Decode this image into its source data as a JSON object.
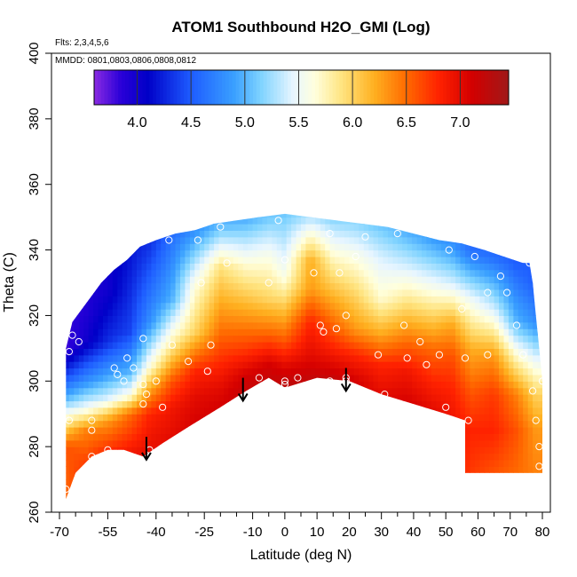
{
  "chart_data": {
    "type": "heatmap",
    "title": "ATOM1 Southbound H2O_GMI (Log)",
    "flights_label": "Flts: 2,3,4,5,6",
    "dates_label": "MMDD: 0801,0803,0806,0808,0812",
    "xlabel": "Latitude (deg N)",
    "ylabel": "Theta (C)",
    "xlim": [
      -70,
      80
    ],
    "ylim": [
      260,
      400
    ],
    "x_tick_labels": [
      "-70",
      "-55",
      "-40",
      "-25",
      "-10",
      "0",
      "10",
      "20",
      "30",
      "40",
      "50",
      "60",
      "70",
      "80"
    ],
    "x_tick_values": [
      -70,
      -55,
      -40,
      -25,
      -10,
      0,
      10,
      20,
      30,
      40,
      50,
      60,
      70,
      80
    ],
    "x_minor_ticks": [
      -65,
      -60,
      -50,
      -45,
      -35,
      -30,
      -20,
      -15,
      -5,
      5,
      15,
      25,
      35,
      45,
      55,
      65,
      75
    ],
    "y_ticks": [
      260,
      280,
      300,
      320,
      340,
      360,
      380,
      400
    ],
    "colorbar": {
      "min": 3.6,
      "max": 7.45,
      "ticks": [
        4.0,
        4.5,
        5.0,
        5.5,
        6.0,
        6.5,
        7.0
      ],
      "tick_labels": [
        "4.0",
        "4.5",
        "5.0",
        "5.5",
        "6.0",
        "6.5",
        "7.0"
      ],
      "stops": [
        {
          "v": 3.6,
          "c": "#8a2be2"
        },
        {
          "v": 3.85,
          "c": "#2a00d8"
        },
        {
          "v": 4.1,
          "c": "#0000c8"
        },
        {
          "v": 4.5,
          "c": "#1e5cff"
        },
        {
          "v": 4.9,
          "c": "#3aa0ff"
        },
        {
          "v": 5.15,
          "c": "#7fd3ff"
        },
        {
          "v": 5.45,
          "c": "#e8f6ff"
        },
        {
          "v": 5.65,
          "c": "#ffffdd"
        },
        {
          "v": 5.9,
          "c": "#ffe480"
        },
        {
          "v": 6.2,
          "c": "#ffb020"
        },
        {
          "v": 6.5,
          "c": "#ff6a00"
        },
        {
          "v": 6.8,
          "c": "#ff2200"
        },
        {
          "v": 7.1,
          "c": "#d40000"
        },
        {
          "v": 7.45,
          "c": "#a01818"
        }
      ]
    },
    "data_region": {
      "top": [
        [
          -68,
          310
        ],
        [
          -66,
          318
        ],
        [
          -63,
          322
        ],
        [
          -60,
          326
        ],
        [
          -57,
          330
        ],
        [
          -53,
          334
        ],
        [
          -49,
          337
        ],
        [
          -45,
          341
        ],
        [
          -40,
          343
        ],
        [
          -34,
          345
        ],
        [
          -28,
          346
        ],
        [
          -22,
          348
        ],
        [
          -15,
          349
        ],
        [
          -8,
          350
        ],
        [
          0,
          351
        ],
        [
          8,
          350
        ],
        [
          16,
          349
        ],
        [
          24,
          348
        ],
        [
          32,
          347
        ],
        [
          40,
          345
        ],
        [
          48,
          343
        ],
        [
          55,
          342
        ],
        [
          62,
          340
        ],
        [
          68,
          338
        ],
        [
          74,
          336
        ],
        [
          76,
          336
        ],
        [
          77,
          330
        ],
        [
          78,
          320
        ],
        [
          79,
          310
        ],
        [
          80,
          300
        ],
        [
          80,
          288
        ]
      ],
      "bottom_points": [
        [
          -68,
          264
        ],
        [
          -65,
          272
        ],
        [
          -60,
          277
        ],
        [
          -55,
          279
        ],
        [
          -50,
          279
        ],
        [
          -44,
          277
        ],
        [
          -38,
          281
        ],
        [
          -30,
          286
        ],
        [
          -20,
          292
        ],
        [
          -12,
          297
        ],
        [
          -5,
          301
        ],
        [
          0,
          298
        ],
        [
          10,
          301
        ],
        [
          20,
          300
        ],
        [
          30,
          296
        ],
        [
          40,
          293
        ],
        [
          50,
          290
        ],
        [
          56,
          288
        ],
        [
          56,
          272
        ],
        [
          80,
          272
        ]
      ]
    },
    "value_field": {
      "description": "log10 H2O mixing ratio; columns of [latitude, [[theta, value], ...]] from bottom to top",
      "columns": [
        [
          -68,
          [
            [
              262,
              6.5
            ],
            [
              280,
              6.6
            ],
            [
              288,
              5.8
            ],
            [
              295,
              5.0
            ],
            [
              302,
              4.4
            ],
            [
              310,
              3.8
            ]
          ]
        ],
        [
          -62,
          [
            [
              274,
              6.7
            ],
            [
              285,
              6.4
            ],
            [
              292,
              5.5
            ],
            [
              300,
              4.8
            ],
            [
              312,
              4.0
            ],
            [
              322,
              3.9
            ]
          ]
        ],
        [
          -55,
          [
            [
              278,
              6.8
            ],
            [
              288,
              6.3
            ],
            [
              295,
              5.4
            ],
            [
              302,
              4.9
            ],
            [
              312,
              4.3
            ],
            [
              328,
              4.0
            ]
          ]
        ],
        [
          -48,
          [
            [
              278,
              6.9
            ],
            [
              290,
              6.5
            ],
            [
              296,
              5.6
            ],
            [
              303,
              5.0
            ],
            [
              315,
              4.4
            ],
            [
              336,
              4.2
            ]
          ]
        ],
        [
          -42,
          [
            [
              277,
              7.0
            ],
            [
              290,
              6.8
            ],
            [
              298,
              6.2
            ],
            [
              305,
              5.6
            ],
            [
              318,
              4.8
            ],
            [
              342,
              4.3
            ]
          ]
        ],
        [
          -35,
          [
            [
              283,
              7.0
            ],
            [
              292,
              6.9
            ],
            [
              300,
              6.6
            ],
            [
              310,
              5.9
            ],
            [
              325,
              5.0
            ],
            [
              345,
              4.6
            ]
          ]
        ],
        [
          -28,
          [
            [
              286,
              7.1
            ],
            [
              295,
              7.0
            ],
            [
              303,
              6.8
            ],
            [
              315,
              6.0
            ],
            [
              330,
              5.6
            ],
            [
              346,
              4.8
            ]
          ]
        ],
        [
          -20,
          [
            [
              292,
              7.1
            ],
            [
              298,
              7.0
            ],
            [
              305,
              6.8
            ],
            [
              318,
              6.4
            ],
            [
              335,
              5.9
            ],
            [
              348,
              5.0
            ]
          ]
        ],
        [
          -12,
          [
            [
              297,
              7.2
            ],
            [
              302,
              7.1
            ],
            [
              310,
              6.7
            ],
            [
              320,
              6.3
            ],
            [
              335,
              5.7
            ],
            [
              349,
              5.0
            ]
          ]
        ],
        [
          -5,
          [
            [
              300,
              7.2
            ],
            [
              305,
              7.1
            ],
            [
              315,
              6.5
            ],
            [
              325,
              6.0
            ],
            [
              338,
              5.6
            ],
            [
              350,
              5.1
            ]
          ]
        ],
        [
          0,
          [
            [
              298,
              7.3
            ],
            [
              305,
              7.0
            ],
            [
              312,
              6.6
            ],
            [
              322,
              6.1
            ],
            [
              332,
              5.6
            ],
            [
              351,
              5.1
            ]
          ]
        ],
        [
          8,
          [
            [
              301,
              7.2
            ],
            [
              308,
              7.0
            ],
            [
              318,
              6.8
            ],
            [
              328,
              6.3
            ],
            [
              337,
              6.2
            ],
            [
              350,
              5.3
            ]
          ]
        ],
        [
          15,
          [
            [
              301,
              7.2
            ],
            [
              308,
              6.9
            ],
            [
              318,
              6.5
            ],
            [
              328,
              6.1
            ],
            [
              338,
              5.7
            ],
            [
              349,
              5.2
            ]
          ]
        ],
        [
          22,
          [
            [
              300,
              7.1
            ],
            [
              308,
              6.8
            ],
            [
              316,
              6.3
            ],
            [
              326,
              6.0
            ],
            [
              338,
              5.6
            ],
            [
              348,
              5.2
            ]
          ]
        ],
        [
          30,
          [
            [
              296,
              7.0
            ],
            [
              305,
              6.8
            ],
            [
              315,
              6.2
            ],
            [
              325,
              5.7
            ],
            [
              338,
              5.4
            ],
            [
              347,
              5.1
            ]
          ]
        ],
        [
          38,
          [
            [
              293,
              7.1
            ],
            [
              303,
              6.9
            ],
            [
              312,
              6.5
            ],
            [
              322,
              6.0
            ],
            [
              335,
              5.4
            ],
            [
              345,
              5.0
            ]
          ]
        ],
        [
          46,
          [
            [
              291,
              7.0
            ],
            [
              300,
              6.8
            ],
            [
              310,
              6.5
            ],
            [
              320,
              6.0
            ],
            [
              332,
              5.4
            ],
            [
              343,
              4.9
            ]
          ]
        ],
        [
          52,
          [
            [
              290,
              6.9
            ],
            [
              298,
              6.8
            ],
            [
              308,
              6.6
            ],
            [
              318,
              6.2
            ],
            [
              330,
              5.4
            ],
            [
              342,
              4.8
            ]
          ]
        ],
        [
          58,
          [
            [
              272,
              6.7
            ],
            [
              285,
              6.8
            ],
            [
              296,
              6.6
            ],
            [
              310,
              6.2
            ],
            [
              325,
              5.5
            ],
            [
              340,
              4.6
            ]
          ]
        ],
        [
          65,
          [
            [
              272,
              6.6
            ],
            [
              285,
              6.8
            ],
            [
              296,
              6.7
            ],
            [
              308,
              6.3
            ],
            [
              322,
              5.4
            ],
            [
              338,
              4.6
            ]
          ]
        ],
        [
          72,
          [
            [
              272,
              6.5
            ],
            [
              285,
              6.6
            ],
            [
              296,
              6.4
            ],
            [
              306,
              5.8
            ],
            [
              318,
              5.0
            ],
            [
              336,
              4.5
            ]
          ]
        ],
        [
          78,
          [
            [
              272,
              6.4
            ],
            [
              285,
              6.3
            ],
            [
              296,
              6.0
            ],
            [
              306,
              5.5
            ],
            [
              318,
              4.8
            ],
            [
              330,
              4.5
            ]
          ]
        ]
      ]
    },
    "samples": [
      [
        -68,
        267
      ],
      [
        -67,
        288
      ],
      [
        -67,
        309
      ],
      [
        -66,
        314
      ],
      [
        -64,
        312
      ],
      [
        -60,
        288
      ],
      [
        -60,
        277
      ],
      [
        -55,
        279
      ],
      [
        -53,
        304
      ],
      [
        -52,
        302
      ],
      [
        -50,
        300
      ],
      [
        -49,
        307
      ],
      [
        -47,
        304
      ],
      [
        -44,
        299
      ],
      [
        -44,
        293
      ],
      [
        -43,
        296
      ],
      [
        -40,
        300
      ],
      [
        -38,
        292
      ],
      [
        -42,
        279
      ],
      [
        -35,
        311
      ],
      [
        -30,
        306
      ],
      [
        -24,
        303
      ],
      [
        -23,
        311
      ],
      [
        -18,
        336
      ],
      [
        -26,
        330
      ],
      [
        -27,
        343
      ],
      [
        -20,
        347
      ],
      [
        -8,
        301
      ],
      [
        0,
        300
      ],
      [
        0,
        299
      ],
      [
        0,
        296
      ],
      [
        4,
        301
      ],
      [
        -5,
        330
      ],
      [
        0,
        337
      ],
      [
        -2,
        349
      ],
      [
        9,
        333
      ],
      [
        11,
        317
      ],
      [
        12,
        315
      ],
      [
        14,
        345
      ],
      [
        14,
        300
      ],
      [
        16,
        316
      ],
      [
        17,
        333
      ],
      [
        19,
        300
      ],
      [
        19,
        301
      ],
      [
        19,
        320
      ],
      [
        22,
        338
      ],
      [
        25,
        344
      ],
      [
        29,
        308
      ],
      [
        31,
        296
      ],
      [
        35,
        345
      ],
      [
        37,
        317
      ],
      [
        38,
        307
      ],
      [
        39,
        292
      ],
      [
        42,
        312
      ],
      [
        42,
        291
      ],
      [
        44,
        305
      ],
      [
        46,
        290
      ],
      [
        48,
        308
      ],
      [
        50,
        292
      ],
      [
        51,
        340
      ],
      [
        55,
        322
      ],
      [
        56,
        307
      ],
      [
        57,
        288
      ],
      [
        59,
        338
      ],
      [
        63,
        308
      ],
      [
        63,
        327
      ],
      [
        67,
        332
      ],
      [
        69,
        327
      ],
      [
        72,
        317
      ],
      [
        74,
        308
      ],
      [
        76,
        336
      ],
      [
        77,
        297
      ],
      [
        78,
        288
      ],
      [
        79,
        280
      ],
      [
        79,
        274
      ],
      [
        80,
        300
      ],
      [
        -36,
        343
      ],
      [
        -44,
        313
      ],
      [
        -60,
        285
      ]
    ],
    "arrows": [
      {
        "lat": -43,
        "theta_from": 283,
        "theta_to": 276
      },
      {
        "lat": -13,
        "theta_from": 301,
        "theta_to": 294
      },
      {
        "lat": 19,
        "theta_from": 304,
        "theta_to": 297
      }
    ]
  }
}
